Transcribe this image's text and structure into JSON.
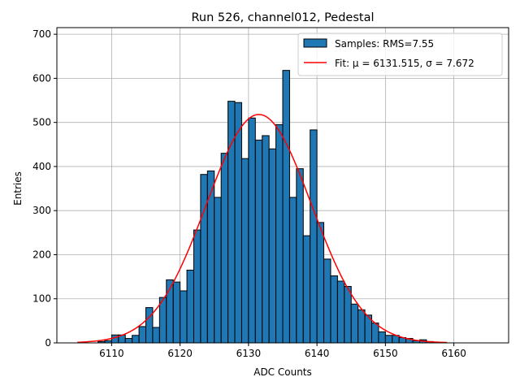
{
  "chart_data": {
    "type": "bar",
    "title": "Run 526, channel012, Pedestal",
    "xlabel": "ADC Counts",
    "ylabel": "Entries",
    "xlim": [
      6102.0,
      6168.0
    ],
    "ylim": [
      0,
      715
    ],
    "xticks": [
      6110,
      6120,
      6130,
      6140,
      6150,
      6160
    ],
    "yticks": [
      0,
      100,
      200,
      300,
      400,
      500,
      600,
      700
    ],
    "grid": true,
    "bin_width": 1,
    "bin_start": 6105,
    "counts": [
      0,
      0,
      0,
      3,
      5,
      18,
      18,
      10,
      17,
      37,
      80,
      35,
      103,
      143,
      138,
      118,
      165,
      256,
      382,
      390,
      330,
      430,
      548,
      545,
      418,
      510,
      460,
      470,
      440,
      495,
      618,
      330,
      395,
      243,
      483,
      273,
      190,
      152,
      140,
      128,
      88,
      75,
      63,
      45,
      25,
      17,
      17,
      12,
      10,
      5,
      7,
      3,
      0,
      0,
      0,
      0,
      0,
      0,
      0,
      0
    ],
    "fit": {
      "mu": 6131.515,
      "sigma": 7.672,
      "amplitude": 518,
      "range": [
        6105,
        6159
      ]
    },
    "colors": {
      "bar": "#1f77b4",
      "edge": "#000000",
      "fit": "#ff0000",
      "grid": "#b0b0b0"
    },
    "legend": {
      "position": "top-right",
      "entries": [
        {
          "label": "Samples: RMS=7.55",
          "kind": "bar"
        },
        {
          "label": "Fit: μ = 6131.515, σ = 7.672",
          "kind": "line"
        }
      ]
    }
  }
}
